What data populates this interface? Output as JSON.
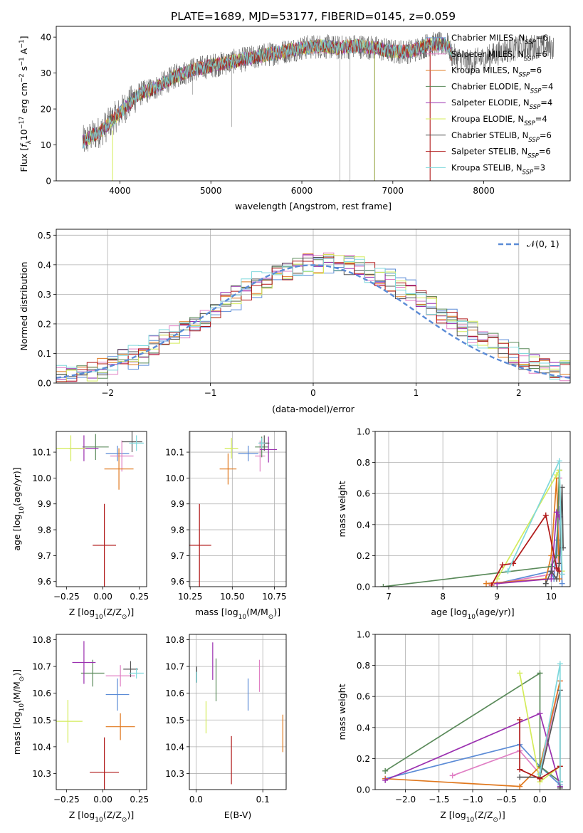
{
  "title": "PLATE=1689, MJD=53177, FIBERID=0145, z=0.059",
  "colors": {
    "Chabrier MILES": "#5b8bd6",
    "Salpeter MILES": "#e07fc4",
    "Kroupa MILES": "#e0781e",
    "Chabrier ELODIE": "#5a8a5a",
    "Salpeter ELODIE": "#9b30b0",
    "Kroupa ELODIE": "#d4ec5a",
    "Chabrier STELIB": "#555555",
    "Salpeter STELIB": "#b01818",
    "Kroupa STELIB": "#7ed8dc",
    "data": "#555555",
    "normal": "#5b8bd6"
  },
  "chart_data": [
    {
      "type": "line",
      "panel": "spectrum",
      "title": "PLATE=1689, MJD=53177, FIBERID=0145, z=0.059",
      "xlabel": "wavelength [Angstrom, rest frame]",
      "ylabel_parts": [
        "Flux [",
        "f",
        "λ",
        "10",
        "−17",
        " erg cm",
        "−2",
        " s",
        "−1",
        " A",
        "−1",
        "]"
      ],
      "xlim": [
        3300,
        8950
      ],
      "ylim": [
        0,
        43
      ],
      "xticks": [
        "4000",
        "5000",
        "6000",
        "7000",
        "8000"
      ],
      "yticks": [
        "0",
        "10",
        "20",
        "30",
        "40"
      ],
      "legend_position": "right",
      "legend": [
        {
          "base": "Chabrier MILES, N",
          "sub": "SSP",
          "tail": "=6"
        },
        {
          "base": "Salpeter MILES, N",
          "sub": "SSP",
          "tail": "=6"
        },
        {
          "base": "Kroupa MILES, N",
          "sub": "SSP",
          "tail": "=6"
        },
        {
          "base": "Chabrier ELODIE, N",
          "sub": "SSP",
          "tail": "=4"
        },
        {
          "base": "Salpeter ELODIE, N",
          "sub": "SSP",
          "tail": "=4"
        },
        {
          "base": "Kroupa ELODIE, N",
          "sub": "SSP",
          "tail": "=4"
        },
        {
          "base": "Chabrier STELIB, N",
          "sub": "SSP",
          "tail": "=6"
        },
        {
          "base": "Salpeter STELIB, N",
          "sub": "SSP",
          "tail": "=6"
        },
        {
          "base": "Kroupa STELIB, N",
          "sub": "SSP",
          "tail": "=3"
        }
      ],
      "continuum": {
        "x": [
          3600,
          3800,
          4000,
          4200,
          4400,
          4600,
          4800,
          5000,
          5200,
          5400,
          5600,
          5800,
          6000,
          6200,
          6400,
          6600,
          6800,
          7000,
          7200,
          7400,
          7600,
          7650,
          7800,
          8000,
          8200,
          8400,
          8600,
          8800
        ],
        "y": [
          11,
          14,
          19,
          24,
          26,
          29,
          31,
          32,
          33,
          34,
          35,
          36,
          37,
          37.5,
          37,
          37.5,
          37,
          36,
          36,
          38,
          38,
          35,
          33,
          34,
          36,
          37,
          37.5,
          37
        ]
      }
    },
    {
      "type": "line",
      "panel": "residual-histogram",
      "xlabel": "(data-model)/error",
      "ylabel": "Normed distribution",
      "xlim": [
        -2.5,
        2.5
      ],
      "ylim": [
        0,
        0.52
      ],
      "xticks": [
        "−2",
        "−1",
        "0",
        "1",
        "2"
      ],
      "yticks": [
        "0.0",
        "0.1",
        "0.2",
        "0.3",
        "0.4",
        "0.5"
      ],
      "grid": true,
      "legend_position": "top-right",
      "legend_label": "𝒩(0, 1)",
      "curve": "normal N(0,1) density",
      "bins": {
        "start": -2.5,
        "width": 0.1,
        "count": 50
      }
    },
    {
      "type": "scatter",
      "panel": "age-vs-Z",
      "xlabel_parts": [
        "Z [log",
        "10",
        "(Z/Z",
        "⊙",
        ")]"
      ],
      "ylabel_parts": [
        "age  [log",
        "10",
        "(age/yr)]"
      ],
      "xlim": [
        -0.32,
        0.3
      ],
      "ylim": [
        9.58,
        10.18
      ],
      "xticks": [
        "−0.25",
        "0.00",
        "0.25"
      ],
      "yticks": [
        "9.6",
        "9.7",
        "9.8",
        "9.9",
        "10.0",
        "10.1"
      ],
      "points": [
        {
          "series": "Chabrier MILES",
          "x": 0.1,
          "y": 10.095,
          "xerr": 0.08,
          "yerr": 0.03
        },
        {
          "series": "Salpeter MILES",
          "x": 0.13,
          "y": 10.085,
          "xerr": 0.08,
          "yerr": 0.06
        },
        {
          "series": "Kroupa MILES",
          "x": 0.11,
          "y": 10.035,
          "xerr": 0.1,
          "yerr": 0.08
        },
        {
          "series": "Chabrier ELODIE",
          "x": -0.05,
          "y": 10.12,
          "xerr": 0.09,
          "yerr": 0.05
        },
        {
          "series": "Salpeter ELODIE",
          "x": -0.13,
          "y": 10.115,
          "xerr": 0.1,
          "yerr": 0.05
        },
        {
          "series": "Kroupa ELODIE",
          "x": -0.22,
          "y": 10.115,
          "xerr": 0.1,
          "yerr": 0.05
        },
        {
          "series": "Chabrier STELIB",
          "x": 0.2,
          "y": 10.14,
          "xerr": 0.07,
          "yerr": 0.04
        },
        {
          "series": "Salpeter STELIB",
          "x": 0.01,
          "y": 9.74,
          "xerr": 0.08,
          "yerr": 0.16
        },
        {
          "series": "Kroupa STELIB",
          "x": 0.23,
          "y": 10.135,
          "xerr": 0.05,
          "yerr": 0.03
        }
      ]
    },
    {
      "type": "scatter",
      "panel": "age-vs-mass",
      "xlabel_parts": [
        "mass [log",
        "10",
        "(M/M",
        "⊙",
        ")]"
      ],
      "xlim": [
        10.245,
        10.82
      ],
      "ylim": [
        9.58,
        10.18
      ],
      "xticks": [
        "10.25",
        "10.50",
        "10.75"
      ],
      "yticks": [
        "9.6",
        "9.7",
        "9.8",
        "9.9",
        "10.0",
        "10.1"
      ],
      "points": [
        {
          "series": "Chabrier MILES",
          "x": 10.595,
          "y": 10.095,
          "xerr": 0.06,
          "yerr": 0.03
        },
        {
          "series": "Salpeter MILES",
          "x": 10.665,
          "y": 10.085,
          "xerr": 0.03,
          "yerr": 0.06
        },
        {
          "series": "Kroupa MILES",
          "x": 10.475,
          "y": 10.035,
          "xerr": 0.05,
          "yerr": 0.06
        },
        {
          "series": "Chabrier ELODIE",
          "x": 10.675,
          "y": 10.12,
          "xerr": 0.04,
          "yerr": 0.04
        },
        {
          "series": "Salpeter ELODIE",
          "x": 10.715,
          "y": 10.11,
          "xerr": 0.05,
          "yerr": 0.05
        },
        {
          "series": "Kroupa ELODIE",
          "x": 10.495,
          "y": 10.115,
          "xerr": 0.04,
          "yerr": 0.04
        },
        {
          "series": "Chabrier STELIB",
          "x": 10.69,
          "y": 10.135,
          "xerr": 0.03,
          "yerr": 0.03
        },
        {
          "series": "Salpeter STELIB",
          "x": 10.305,
          "y": 9.74,
          "xerr": 0.07,
          "yerr": 0.16
        },
        {
          "series": "Kroupa STELIB",
          "x": 10.675,
          "y": 10.135,
          "xerr": 0.02,
          "yerr": 0.02
        }
      ]
    },
    {
      "type": "line",
      "panel": "mass-weight-vs-age",
      "xlabel_parts": [
        "age  [log",
        "10",
        "(age/yr)]"
      ],
      "ylabel": "mass weight",
      "xlim": [
        6.75,
        10.35
      ],
      "ylim": [
        0,
        1
      ],
      "xticks": [
        "7",
        "8",
        "9",
        "10"
      ],
      "yticks": [
        "0.0",
        "0.2",
        "0.4",
        "0.6",
        "0.8",
        "1.0"
      ],
      "grid": true,
      "series": [
        {
          "name": "Chabrier MILES",
          "x": [
            9.0,
            10.0,
            10.05,
            10.1,
            10.15,
            10.2
          ],
          "y": [
            0.02,
            0.1,
            0.05,
            0.3,
            0.5,
            0.02
          ]
        },
        {
          "name": "Salpeter MILES",
          "x": [
            9.0,
            10.0,
            10.1,
            10.15,
            10.2
          ],
          "y": [
            0.02,
            0.08,
            0.12,
            0.7,
            0.08
          ]
        },
        {
          "name": "Kroupa MILES",
          "x": [
            8.8,
            9.9,
            10.0,
            10.1,
            10.15
          ],
          "y": [
            0.02,
            0.05,
            0.2,
            0.7,
            0.05
          ]
        },
        {
          "name": "Chabrier ELODIE",
          "x": [
            6.9,
            10.0,
            10.1,
            10.15
          ],
          "y": [
            0.0,
            0.13,
            0.2,
            0.75
          ]
        },
        {
          "name": "Salpeter ELODIE",
          "x": [
            9.0,
            10.0,
            10.1,
            10.15
          ],
          "y": [
            0.02,
            0.05,
            0.48,
            0.45
          ]
        },
        {
          "name": "Kroupa ELODIE",
          "x": [
            9.0,
            10.1,
            10.15,
            10.2
          ],
          "y": [
            0.05,
            0.72,
            0.75,
            0.1
          ]
        },
        {
          "name": "Chabrier STELIB",
          "x": [
            9.9,
            10.0,
            10.1,
            10.15,
            10.2,
            10.22
          ],
          "y": [
            0.02,
            0.1,
            0.05,
            0.15,
            0.64,
            0.25
          ]
        },
        {
          "name": "Salpeter STELIB",
          "x": [
            8.9,
            9.1,
            9.3,
            9.9,
            10.1,
            10.15
          ],
          "y": [
            0.01,
            0.14,
            0.15,
            0.46,
            0.12,
            0.1
          ]
        },
        {
          "name": "Kroupa STELIB",
          "x": [
            9.2,
            10.15,
            10.2
          ],
          "y": [
            0.1,
            0.81,
            0.08
          ]
        }
      ]
    },
    {
      "type": "scatter",
      "panel": "mass-vs-Z",
      "xlabel_parts": [
        "Z [log",
        "10",
        "(Z/Z",
        "⊙",
        ")]"
      ],
      "ylabel_parts": [
        "mass [log",
        "10",
        "(M/M",
        "⊙",
        ")]"
      ],
      "xlim": [
        -0.32,
        0.3
      ],
      "ylim": [
        10.24,
        10.82
      ],
      "xticks": [
        "−0.25",
        "0.00",
        "0.25"
      ],
      "yticks": [
        "10.3",
        "10.4",
        "10.5",
        "10.6",
        "10.7",
        "10.8"
      ],
      "points": [
        {
          "series": "Chabrier MILES",
          "x": 0.1,
          "y": 10.595,
          "xerr": 0.08,
          "yerr": 0.06
        },
        {
          "series": "Salpeter MILES",
          "x": 0.12,
          "y": 10.665,
          "xerr": 0.1,
          "yerr": 0.04
        },
        {
          "series": "Kroupa MILES",
          "x": 0.12,
          "y": 10.475,
          "xerr": 0.1,
          "yerr": 0.05
        },
        {
          "series": "Chabrier ELODIE",
          "x": -0.07,
          "y": 10.675,
          "xerr": 0.08,
          "yerr": 0.05
        },
        {
          "series": "Salpeter ELODIE",
          "x": -0.13,
          "y": 10.715,
          "xerr": 0.08,
          "yerr": 0.08
        },
        {
          "series": "Kroupa ELODIE",
          "x": -0.24,
          "y": 10.495,
          "xerr": 0.1,
          "yerr": 0.08
        },
        {
          "series": "Chabrier STELIB",
          "x": 0.19,
          "y": 10.69,
          "xerr": 0.05,
          "yerr": 0.03
        },
        {
          "series": "Salpeter STELIB",
          "x": 0.01,
          "y": 10.305,
          "xerr": 0.1,
          "yerr": 0.13
        },
        {
          "series": "Kroupa STELIB",
          "x": 0.23,
          "y": 10.675,
          "xerr": 0.05,
          "yerr": 0.02
        }
      ]
    },
    {
      "type": "scatter",
      "panel": "mass-vs-extinction",
      "xlabel": "E(B-V)",
      "xlim": [
        -0.01,
        0.135
      ],
      "ylim": [
        10.24,
        10.82
      ],
      "xticks": [
        "0.0",
        "0.1"
      ],
      "yticks": [
        "10.3",
        "10.4",
        "10.5",
        "10.6",
        "10.7",
        "10.8"
      ],
      "points": [
        {
          "series": "Chabrier MILES",
          "x": 0.078,
          "y": 10.595,
          "yerr": 0.06
        },
        {
          "series": "Salpeter MILES",
          "x": 0.095,
          "y": 10.665,
          "yerr": 0.06
        },
        {
          "series": "Kroupa MILES",
          "x": 0.13,
          "y": 10.45,
          "yerr": 0.07
        },
        {
          "series": "Chabrier ELODIE",
          "x": 0.03,
          "y": 10.65,
          "yerr": 0.08
        },
        {
          "series": "Salpeter ELODIE",
          "x": 0.025,
          "y": 10.72,
          "yerr": 0.07
        },
        {
          "series": "Kroupa ELODIE",
          "x": 0.015,
          "y": 10.51,
          "yerr": 0.06
        },
        {
          "series": "Chabrier STELIB",
          "x": 0.001,
          "y": 10.67,
          "yerr": 0.03
        },
        {
          "series": "Salpeter STELIB",
          "x": 0.053,
          "y": 10.35,
          "yerr": 0.09
        },
        {
          "series": "Kroupa STELIB",
          "x": 0.001,
          "y": 10.66,
          "yerr": 0.02
        }
      ]
    },
    {
      "type": "line",
      "panel": "mass-weight-vs-Z",
      "xlabel_parts": [
        "Z [log",
        "10",
        "(Z/Z",
        "⊙",
        ")]"
      ],
      "ylabel": "mass weight",
      "xlim": [
        -2.45,
        0.45
      ],
      "ylim": [
        0,
        1
      ],
      "xticks": [
        "−2.0",
        "−1.5",
        "−1.0",
        "−0.5",
        "0.0"
      ],
      "yticks": [
        "0.0",
        "0.2",
        "0.4",
        "0.6",
        "0.8",
        "1.0"
      ],
      "grid": true,
      "series": [
        {
          "name": "Chabrier MILES",
          "x": [
            -2.3,
            -0.3,
            0.0,
            0.3
          ],
          "y": [
            0.07,
            0.29,
            0.15,
            0.03
          ]
        },
        {
          "name": "Salpeter MILES",
          "x": [
            -1.3,
            -0.3,
            0.0,
            0.3
          ],
          "y": [
            0.09,
            0.25,
            0.1,
            0.7
          ]
        },
        {
          "name": "Kroupa MILES",
          "x": [
            -2.3,
            -0.3,
            0.0,
            0.3
          ],
          "y": [
            0.07,
            0.02,
            0.15,
            0.7
          ]
        },
        {
          "name": "Chabrier ELODIE",
          "x": [
            -2.3,
            0.0,
            0.0,
            0.3
          ],
          "y": [
            0.12,
            0.75,
            0.15,
            0.05
          ]
        },
        {
          "name": "Salpeter ELODIE",
          "x": [
            -2.3,
            0.0,
            0.3
          ],
          "y": [
            0.06,
            0.49,
            0.02
          ]
        },
        {
          "name": "Kroupa ELODIE",
          "x": [
            -0.3,
            0.0,
            0.3
          ],
          "y": [
            0.75,
            0.05,
            0.15
          ]
        },
        {
          "name": "Chabrier STELIB",
          "x": [
            -0.3,
            0.0,
            0.3,
            0.3
          ],
          "y": [
            0.08,
            0.08,
            0.64,
            0.01
          ]
        },
        {
          "name": "Salpeter STELIB",
          "x": [
            -0.3,
            -0.3,
            0.0,
            0.3
          ],
          "y": [
            0.45,
            0.13,
            0.07,
            0.15
          ]
        },
        {
          "name": "Kroupa STELIB",
          "x": [
            0.0,
            0.3,
            0.3
          ],
          "y": [
            0.1,
            0.81,
            0.05
          ]
        }
      ]
    }
  ]
}
